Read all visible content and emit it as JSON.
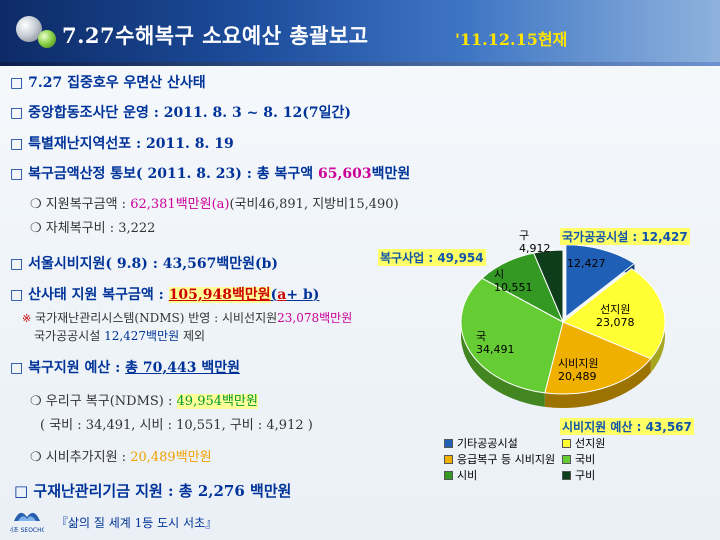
{
  "header": {
    "title": "7.27수해복구 소요예산 총괄보고",
    "date": "'11.12.15현재"
  },
  "lines": {
    "l1": "□ 7.27 집중호우 우면산 산사태",
    "l2": "□ 중앙합동조사단 운영 : 2011. 8. 3 ~ 8. 12(7일간)",
    "l3": "□ 특별재난지역선포  :  2011.  8. 19",
    "l4_pre": "□ 복구금액산정 통보( 2011. 8. 23) : 총 복구액 ",
    "l4_num": "65,603",
    "l4_post": "백만원",
    "l5_pre": "❍ 지원복구금액 : ",
    "l5_num": "62,381백만원(a)",
    "l5_post": "(국비46,891, 지방비15,490)",
    "l6": "❍ 자체복구비 : 3,222",
    "l7": "□ 서울시비지원( 9.8) : 43,567백만원(b)",
    "l8_pre": "□ 산사태 지원 복구금액 : ",
    "l8_num": "105,948백만원",
    "l8_paren_open": "(",
    "l8_a": "a",
    "l8_plus": "+ ",
    "l8_b": "b",
    "l8_paren_close": ")",
    "l9_star": "※",
    "l9_pre": " 국가재난관리시스템(NDMS) 반영 : 시비선지원",
    "l9_num": "23,078백만원",
    "l10_pre": "국가공공시설  ",
    "l10_num": "12,427백만원",
    "l10_post": "  제외",
    "l11_pre": "□ 복구지원 예산 :  ",
    "l11_total": "총 70,443 백만원",
    "l12_pre": "❍ 우리구 복구(NDMS) : ",
    "l12_num": "49,954백만원",
    "l13": "( 국비 : 34,491,  시비 : 10,551,  구비 : 4,912 )",
    "l14_pre": "❍ 시비추가지원 :  ",
    "l14_num": "20,489백만원",
    "l15": "□ 구재난관리기금 지원  :  총 2,276 백만원"
  },
  "footer": {
    "logo_text": "서초 SEOCHO",
    "slogan": "『삶의 질 세계 1등 도시 서초』"
  },
  "chart_data": {
    "type": "pie",
    "callouts": {
      "gov": "국가공공시설 : 12,427",
      "recovery": "복구사업 : 49,954",
      "city": "시비지원 예산 : 43,567"
    },
    "slices": [
      {
        "name": "기타공공시설",
        "short": "",
        "value": 12427,
        "label": "12,427",
        "color": "#1f5fb5"
      },
      {
        "name": "선지원",
        "short": "선지원",
        "value": 23078,
        "label": "23,078",
        "color": "#ffff33"
      },
      {
        "name": "응급복구 등 시비지원",
        "short": "시비지원",
        "value": 20489,
        "label": "20,489",
        "color": "#f0b000"
      },
      {
        "name": "국비",
        "short": "국",
        "value": 34491,
        "label": "34,491",
        "color": "#66cc33"
      },
      {
        "name": "시비",
        "short": "시",
        "value": 10551,
        "label": "10,551",
        "color": "#339922"
      },
      {
        "name": "구비",
        "short": "구",
        "value": 4912,
        "label": "4,912",
        "color": "#0d3d1a"
      }
    ],
    "legend": [
      "기타공공시설",
      "선지원",
      "응급복구 등 시비지원",
      "국비",
      "시비",
      "구비"
    ]
  }
}
